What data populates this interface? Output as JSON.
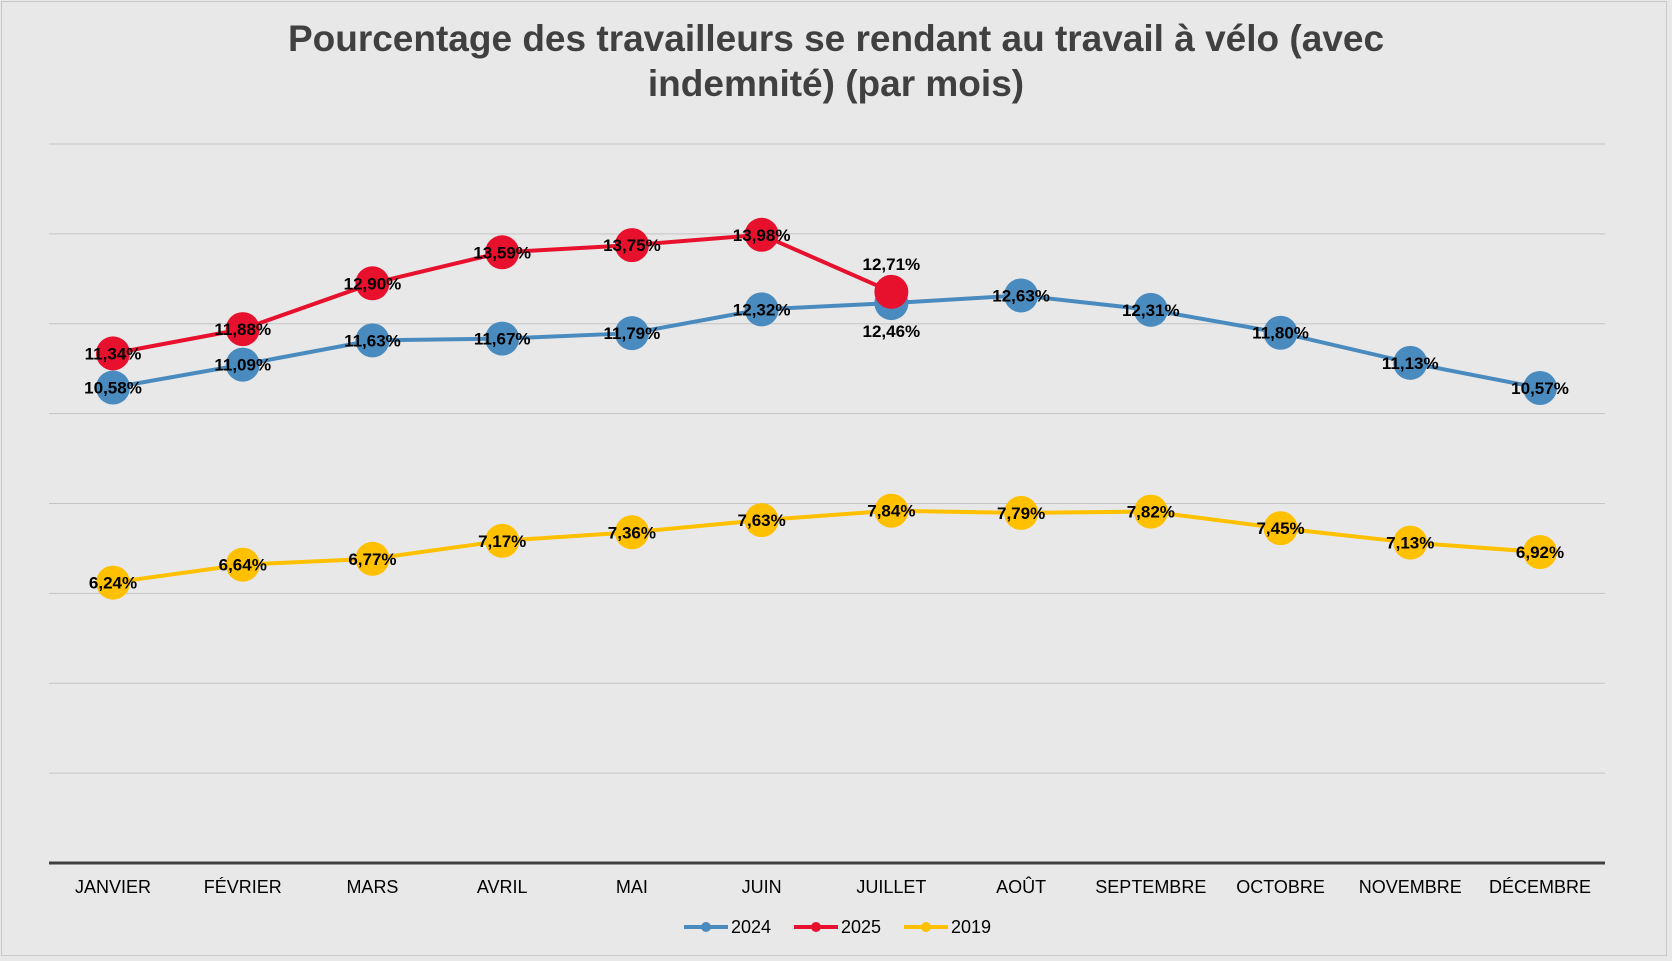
{
  "chart_data": {
    "type": "line",
    "title": "Pourcentage des travailleurs se rendant au travail à vélo (avec indemnité) (par mois)",
    "title_lines": [
      "Pourcentage des travailleurs se rendant au travail à vélo (avec",
      "indemnité) (par mois)"
    ],
    "categories": [
      "JANVIER",
      "FÉVRIER",
      "MARS",
      "AVRIL",
      "MAI",
      "JUIN",
      "JUILLET",
      "AOÛT",
      "SEPTEMBRE",
      "OCTOBRE",
      "NOVEMBRE",
      "DÉCEMBRE"
    ],
    "ylim": [
      0,
      16
    ],
    "ygrid_step": 2,
    "grid": true,
    "legend_position": "bottom",
    "series": [
      {
        "name": "2024",
        "color": "#4a8bbf",
        "values": [
          10.58,
          11.09,
          11.63,
          11.67,
          11.79,
          12.32,
          12.46,
          12.63,
          12.31,
          11.8,
          11.13,
          10.57
        ],
        "labels": [
          "10,58%",
          "11,09%",
          "11,63%",
          "11,67%",
          "11,79%",
          "12,32%",
          "12,46%",
          "12,63%",
          "12,31%",
          "11,80%",
          "11,13%",
          "10,57%"
        ]
      },
      {
        "name": "2025",
        "color": "#e8112d",
        "values": [
          11.34,
          11.88,
          12.9,
          13.59,
          13.75,
          13.98,
          12.71,
          null,
          null,
          null,
          null,
          null
        ],
        "labels": [
          "11,34%",
          "11,88%",
          "12,90%",
          "13,59%",
          "13,75%",
          "13,98%",
          "12,71%",
          null,
          null,
          null,
          null,
          null
        ]
      },
      {
        "name": "2019",
        "color": "#ffc000",
        "values": [
          6.24,
          6.64,
          6.77,
          7.17,
          7.36,
          7.63,
          7.84,
          7.79,
          7.82,
          7.45,
          7.13,
          6.92
        ],
        "labels": [
          "6,24%",
          "6,64%",
          "6,77%",
          "7,17%",
          "7,36%",
          "7,63%",
          "7,84%",
          "7,79%",
          "7,82%",
          "7,45%",
          "7,13%",
          "6,92%"
        ]
      }
    ]
  }
}
